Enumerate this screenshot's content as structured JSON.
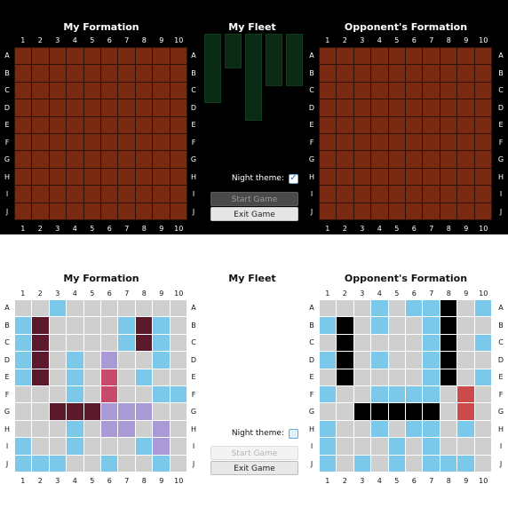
{
  "column_labels": [
    "1",
    "2",
    "3",
    "4",
    "5",
    "6",
    "7",
    "8",
    "9",
    "10"
  ],
  "row_labels": [
    "A",
    "B",
    "C",
    "D",
    "E",
    "F",
    "G",
    "H",
    "I",
    "J"
  ],
  "night": {
    "my_formation_title": "My Formation",
    "fleet_title": "My Fleet",
    "opponent_formation_title": "Opponent's Formation",
    "night_theme_label": "Night theme:",
    "night_theme_checked": true,
    "start_button": "Start Game",
    "exit_button": "Exit Game",
    "fleet_ship_lengths": [
      4,
      2,
      5,
      3,
      3
    ],
    "fleet_color": "#0b2a14",
    "cell_color": "#7a2a12"
  },
  "day": {
    "my_formation_title": "My Formation",
    "fleet_title": "My Fleet",
    "opponent_formation_title": "Opponent's Formation",
    "night_theme_label": "Night theme:",
    "night_theme_checked": false,
    "start_button": "Start Game",
    "exit_button": "Exit Game",
    "my_board": [
      "..m.......",
      "m1....m2m.",
      "m1....m2m.",
      "m1.m.4..m.",
      "m1.m.3.m..",
      "...m.3..mm",
      "..111554..",
      "...m.45.4.",
      "m..m...m4.",
      "mmm..m..m."
    ],
    "opponent_board": [
      "...m.mmk.m",
      "mk.m..mk..",
      ".k....mk.m",
      "mk.m..mk..",
      ".k....mk.m",
      "m..mmmm.r.",
      "..kkkkk.r.",
      "m..m.mm.m.",
      "m...m.m...",
      "m.m.m.mmm."
    ],
    "legend_colors": {
      "miss": "#7ac8ea",
      "my_ship": "#5a1a2c",
      "hit": "#c84a6a",
      "my_ship_alt": "#a99ad6",
      "sunk": "#000000",
      "opponent_hit": "#cc4a4a",
      "empty": "#cfcfcf"
    }
  }
}
